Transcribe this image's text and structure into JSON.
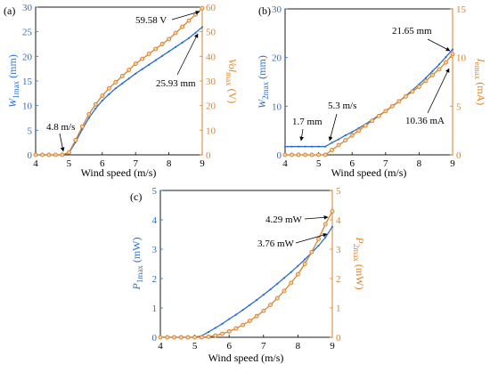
{
  "chart_data": [
    {
      "panel_label": "(a)",
      "type": "line",
      "xlabel": "Wind speed (m/s)",
      "xlim": [
        4,
        9
      ],
      "xticks": [
        "4",
        "5",
        "6",
        "7",
        "8",
        "9"
      ],
      "left_axis": {
        "label_main": "W",
        "label_sub": "1max",
        "label_unit": " (mm)",
        "ylim": [
          0,
          30
        ],
        "ticks": [
          "0",
          "5",
          "10",
          "15",
          "20",
          "25",
          "30"
        ],
        "color": "#2a6fcf"
      },
      "right_axis": {
        "label_main": "Vol",
        "label_sub": "max",
        "label_unit": " (V)",
        "ylim": [
          0,
          60
        ],
        "ticks": [
          "0",
          "10",
          "20",
          "30",
          "40",
          "50",
          "60"
        ],
        "color": "#d9822b"
      },
      "series": [
        {
          "axis": "left",
          "marker": "dot",
          "color": "#2a6fcf",
          "x": [
            4.0,
            4.2,
            4.4,
            4.6,
            4.8,
            5.0,
            5.2,
            5.4,
            5.6,
            5.8,
            6.0,
            6.2,
            6.4,
            6.6,
            6.8,
            7.0,
            7.2,
            7.4,
            7.6,
            7.8,
            8.0,
            8.2,
            8.4,
            8.6,
            8.8,
            9.0
          ],
          "y": [
            0,
            0,
            0,
            0,
            0,
            0.4,
            2.6,
            5.2,
            7.5,
            9.4,
            11.0,
            12.3,
            13.5,
            14.5,
            15.5,
            16.5,
            17.4,
            18.3,
            19.2,
            20.1,
            21.0,
            21.9,
            22.8,
            23.7,
            24.8,
            25.93
          ]
        },
        {
          "axis": "right",
          "marker": "circle",
          "color": "#d9822b",
          "x": [
            4.0,
            4.2,
            4.4,
            4.6,
            4.8,
            5.0,
            5.2,
            5.4,
            5.6,
            5.8,
            6.0,
            6.2,
            6.4,
            6.6,
            6.8,
            7.0,
            7.2,
            7.4,
            7.6,
            7.8,
            8.0,
            8.2,
            8.4,
            8.6,
            8.8,
            9.0
          ],
          "y": [
            0,
            0,
            0,
            0,
            0,
            1.0,
            6.0,
            11.5,
            16.5,
            20.5,
            24.0,
            27.0,
            29.5,
            32.0,
            34.5,
            37.0,
            39.0,
            41.0,
            43.0,
            45.0,
            47.0,
            49.5,
            52.0,
            54.5,
            57.0,
            59.58
          ]
        }
      ],
      "annotations": [
        {
          "text": "59.58 V",
          "x": 9.0,
          "y": 59.58,
          "axis": "right"
        },
        {
          "text": "25.93 mm",
          "x": 9.0,
          "y": 25.93,
          "axis": "left"
        },
        {
          "text": "4.8 m/s",
          "x": 4.8,
          "y": 0,
          "axis": "left"
        }
      ]
    },
    {
      "panel_label": "(b)",
      "type": "line",
      "xlabel": "Wind speed (m/s)",
      "xlim": [
        4,
        9
      ],
      "xticks": [
        "4",
        "5",
        "6",
        "7",
        "8",
        "9"
      ],
      "left_axis": {
        "label_main": "W",
        "label_sub": "2max",
        "label_unit": " (mm)",
        "ylim": [
          0,
          30
        ],
        "ticks": [
          "0",
          "10",
          "20",
          "30"
        ],
        "color": "#2a6fcf"
      },
      "right_axis": {
        "label_main": "I",
        "label_sub": "emax",
        "label_unit": " (mA)",
        "ylim": [
          0,
          15
        ],
        "ticks": [
          "0",
          "5",
          "10",
          "15"
        ],
        "color": "#d9822b"
      },
      "series": [
        {
          "axis": "left",
          "marker": "dot",
          "color": "#2a6fcf",
          "x": [
            4.0,
            4.2,
            4.4,
            4.6,
            4.8,
            5.0,
            5.2,
            5.4,
            5.6,
            5.8,
            6.0,
            6.2,
            6.4,
            6.6,
            6.8,
            7.0,
            7.2,
            7.4,
            7.6,
            7.8,
            8.0,
            8.2,
            8.4,
            8.6,
            8.8,
            9.0
          ],
          "y": [
            1.7,
            1.7,
            1.7,
            1.7,
            1.7,
            1.7,
            1.7,
            2.5,
            3.2,
            4.0,
            4.7,
            5.5,
            6.3,
            7.2,
            8.1,
            9.0,
            10.0,
            11.0,
            12.1,
            13.3,
            14.5,
            15.8,
            17.2,
            18.6,
            20.1,
            21.65
          ]
        },
        {
          "axis": "right",
          "marker": "circle",
          "color": "#d9822b",
          "x": [
            4.0,
            4.2,
            4.4,
            4.6,
            4.8,
            5.0,
            5.2,
            5.4,
            5.6,
            5.8,
            6.0,
            6.2,
            6.4,
            6.6,
            6.8,
            7.0,
            7.2,
            7.4,
            7.6,
            7.8,
            8.0,
            8.2,
            8.4,
            8.6,
            8.8,
            9.0
          ],
          "y": [
            0,
            0,
            0,
            0,
            0,
            0,
            0,
            0.5,
            1.0,
            1.5,
            2.0,
            2.5,
            3.0,
            3.5,
            4.0,
            4.5,
            5.0,
            5.5,
            6.0,
            6.5,
            7.0,
            7.6,
            8.2,
            8.8,
            9.5,
            10.36
          ]
        }
      ],
      "annotations": [
        {
          "text": "21.65 mm",
          "x": 9.0,
          "y": 21.65,
          "axis": "left"
        },
        {
          "text": "5.3 m/s",
          "x": 5.3,
          "y": 1.7,
          "axis": "left"
        },
        {
          "text": "1.7 mm",
          "x": 4.0,
          "y": 1.7,
          "axis": "left"
        },
        {
          "text": "10.36 mA",
          "x": 9.0,
          "y": 10.36,
          "axis": "right"
        }
      ]
    },
    {
      "panel_label": "(c)",
      "type": "line",
      "xlabel": "Wind speed (m/s)",
      "xlim": [
        4,
        9
      ],
      "xticks": [
        "4",
        "5",
        "6",
        "7",
        "8",
        "9"
      ],
      "left_axis": {
        "label_main": "P",
        "label_sub": "1max",
        "label_unit": " (mW)",
        "ylim": [
          0,
          5
        ],
        "ticks": [
          "0",
          "1",
          "2",
          "3",
          "4",
          "5"
        ],
        "color": "#2a6fcf"
      },
      "right_axis": {
        "label_main": "P",
        "label_sub": "2max",
        "label_unit": " (mW)",
        "ylim": [
          0,
          5
        ],
        "ticks": [
          "0",
          "1",
          "2",
          "3",
          "4",
          "5"
        ],
        "color": "#d9822b"
      },
      "series": [
        {
          "axis": "left",
          "marker": "dot",
          "color": "#2a6fcf",
          "x": [
            4.0,
            4.2,
            4.4,
            4.6,
            4.8,
            5.0,
            5.2,
            5.4,
            5.6,
            5.8,
            6.0,
            6.2,
            6.4,
            6.6,
            6.8,
            7.0,
            7.2,
            7.4,
            7.6,
            7.8,
            8.0,
            8.2,
            8.4,
            8.6,
            8.8,
            9.0
          ],
          "y": [
            0,
            0,
            0,
            0,
            0,
            0,
            0.05,
            0.18,
            0.32,
            0.46,
            0.62,
            0.77,
            0.93,
            1.1,
            1.27,
            1.45,
            1.63,
            1.82,
            2.02,
            2.22,
            2.43,
            2.65,
            2.88,
            3.12,
            3.4,
            3.76
          ]
        },
        {
          "axis": "right",
          "marker": "circle",
          "color": "#d9822b",
          "x": [
            4.0,
            4.2,
            4.4,
            4.6,
            4.8,
            5.0,
            5.2,
            5.4,
            5.6,
            5.8,
            6.0,
            6.2,
            6.4,
            6.6,
            6.8,
            7.0,
            7.2,
            7.4,
            7.6,
            7.8,
            8.0,
            8.2,
            8.4,
            8.6,
            8.8,
            9.0
          ],
          "y": [
            0,
            0,
            0,
            0,
            0,
            0,
            0,
            0.02,
            0.06,
            0.12,
            0.2,
            0.3,
            0.42,
            0.56,
            0.72,
            0.9,
            1.1,
            1.33,
            1.58,
            1.85,
            2.15,
            2.5,
            2.9,
            3.35,
            3.85,
            4.29
          ]
        }
      ],
      "annotations": [
        {
          "text": "4.29 mW",
          "x": 9.0,
          "y": 4.29,
          "axis": "right"
        },
        {
          "text": "3.76 mW",
          "x": 9.0,
          "y": 3.76,
          "axis": "left"
        }
      ]
    }
  ]
}
